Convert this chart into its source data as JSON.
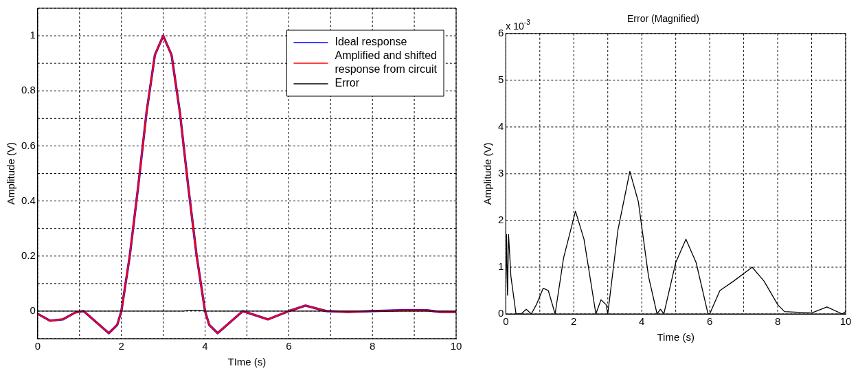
{
  "chart_data": [
    {
      "type": "line",
      "xlabel": "TIme (s)",
      "ylabel": "Amplitude (V)",
      "x": [
        0,
        0.3,
        0.6,
        0.9,
        1.1,
        1.4,
        1.7,
        1.9,
        2.0,
        2.2,
        2.4,
        2.6,
        2.8,
        3.0,
        3.2,
        3.4,
        3.6,
        3.8,
        4.0,
        4.1,
        4.3,
        4.6,
        4.9,
        5.1,
        5.5,
        6.0,
        6.4,
        6.9,
        7.4,
        8.0,
        8.7,
        9.0,
        9.3,
        9.6,
        10
      ],
      "series": [
        {
          "name": "Ideal response",
          "color": "#0000ff",
          "values": [
            -0.01,
            -0.035,
            -0.03,
            -0.005,
            0,
            -0.04,
            -0.08,
            -0.05,
            0,
            0.2,
            0.45,
            0.72,
            0.93,
            1.0,
            0.93,
            0.72,
            0.45,
            0.2,
            0,
            -0.05,
            -0.08,
            -0.04,
            0,
            -0.01,
            -0.03,
            0,
            0.02,
            0,
            -0.003,
            0,
            0.003,
            0.003,
            0.003,
            -0.003,
            -0.003
          ]
        },
        {
          "name": "Amplified and shifted response from circuit",
          "color": "#ff0000",
          "values": [
            -0.01,
            -0.035,
            -0.03,
            -0.005,
            0,
            -0.04,
            -0.08,
            -0.05,
            0,
            0.2,
            0.45,
            0.72,
            0.93,
            1.0,
            0.93,
            0.72,
            0.45,
            0.2,
            0,
            -0.05,
            -0.08,
            -0.04,
            0,
            -0.01,
            -0.03,
            0,
            0.02,
            0,
            -0.003,
            0,
            0.003,
            0.003,
            0.003,
            -0.003,
            -0.003
          ]
        },
        {
          "name": "Error",
          "color": "#000000",
          "x": [
            0,
            3.5,
            3.6,
            3.9,
            4.0,
            10
          ],
          "values": [
            0,
            0,
            0.003,
            0.003,
            0,
            0
          ]
        }
      ],
      "xlim": [
        0,
        10
      ],
      "xticks": [
        0,
        {
          "value": 1,
          "label": null
        },
        2,
        {
          "value": 3,
          "label": null
        },
        4,
        {
          "value": 5,
          "label": null
        },
        6,
        {
          "value": 7,
          "label": null
        },
        8,
        {
          "value": 9,
          "label": null
        },
        10
      ],
      "ylim": [
        -0.1,
        1.1
      ],
      "yticks": [
        {
          "value": -0.1,
          "label": null
        },
        0,
        {
          "value": 0.1,
          "label": null
        },
        0.2,
        {
          "value": 0.3,
          "label": null
        },
        0.4,
        {
          "value": 0.5,
          "label": null
        },
        0.6,
        {
          "value": 0.7,
          "label": null
        },
        0.8,
        {
          "value": 0.9,
          "label": null
        },
        1,
        {
          "value": 1.1,
          "label": null
        }
      ],
      "grid": true,
      "legend": "top right",
      "marker": "none",
      "line_style": "solid"
    },
    {
      "type": "line",
      "title": "Error (Magnified)",
      "xlabel": "Time (s)",
      "ylabel": "Amplitude (V)",
      "annotations": [
        "x 10$^{-3}$"
      ],
      "x": [
        0,
        0.02,
        0.05,
        0.08,
        0.15,
        0.3,
        0.45,
        0.6,
        0.75,
        0.9,
        1.1,
        1.25,
        1.45,
        1.7,
        2.05,
        2.3,
        2.65,
        2.8,
        2.95,
        3.0,
        3.3,
        3.65,
        3.9,
        4.2,
        4.45,
        4.55,
        4.65,
        5.0,
        5.3,
        5.6,
        5.95,
        6.0,
        6.3,
        6.7,
        7.25,
        7.6,
        8.0,
        8.2,
        9.0,
        9.45,
        9.9,
        10
      ],
      "series": [
        {
          "color": "#000000",
          "values": [
            0.5,
            1.7,
            0.4,
            1.7,
            0.8,
            0,
            0,
            0.1,
            0,
            0.2,
            0.55,
            0.5,
            0,
            1.2,
            2.2,
            1.6,
            0,
            0.3,
            0.2,
            0,
            1.8,
            3.05,
            2.4,
            0.8,
            0,
            0.1,
            0,
            1.1,
            1.6,
            1.1,
            0,
            0,
            0.5,
            0.7,
            1.0,
            0.7,
            0.2,
            0.05,
            0.02,
            0.15,
            0,
            0.05
          ]
        }
      ],
      "xlim": [
        0,
        10
      ],
      "xticks": [
        0,
        {
          "value": 1,
          "label": null
        },
        2,
        {
          "value": 3,
          "label": null
        },
        4,
        {
          "value": 5,
          "label": null
        },
        6,
        {
          "value": 7,
          "label": null
        },
        8,
        {
          "value": 9,
          "label": null
        },
        10
      ],
      "ylim": [
        0,
        6
      ],
      "yticks": [
        0,
        1,
        2,
        3,
        4,
        5,
        6
      ],
      "grid": true,
      "legend": false,
      "marker": "none",
      "line_style": "solid"
    }
  ]
}
